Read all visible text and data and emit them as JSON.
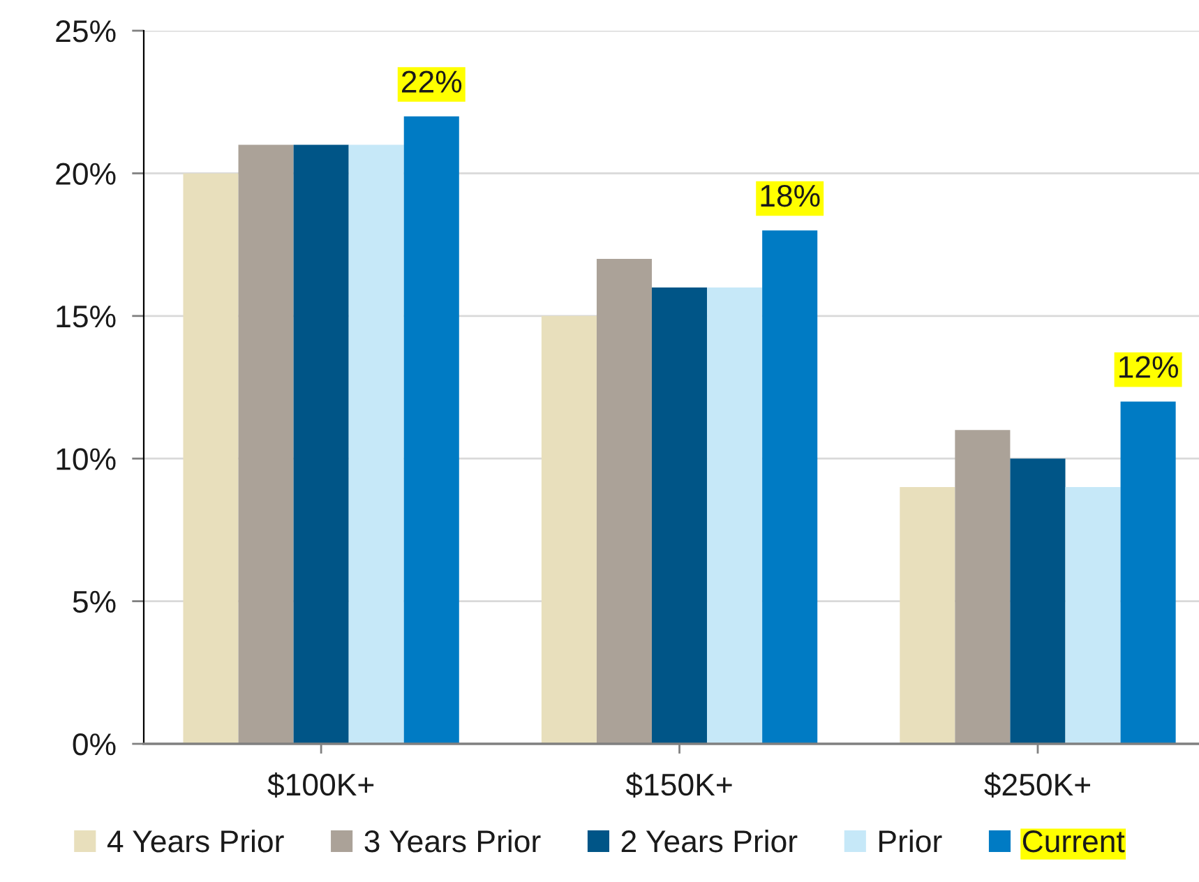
{
  "chart_data": {
    "type": "bar",
    "categories": [
      "$100K+",
      "$150K+",
      "$250K+"
    ],
    "series": [
      {
        "name": "4 Years Prior",
        "color": "#e8dfbc",
        "values": [
          20,
          15,
          9
        ]
      },
      {
        "name": "3 Years Prior",
        "color": "#aba298",
        "values": [
          21,
          17,
          11
        ]
      },
      {
        "name": "2 Years Prior",
        "color": "#005587",
        "values": [
          21,
          16,
          10
        ]
      },
      {
        "name": "Prior",
        "color": "#c6e8f8",
        "values": [
          21,
          16,
          9
        ]
      },
      {
        "name": "Current",
        "color": "#007bc4",
        "values": [
          22,
          18,
          12
        ],
        "value_labels": [
          "22%",
          "18%",
          "12%"
        ]
      }
    ],
    "ylim": [
      0,
      25
    ],
    "yticks": [
      {
        "value": 0,
        "label": "0%"
      },
      {
        "value": 5,
        "label": "5%"
      },
      {
        "value": 10,
        "label": "10%"
      },
      {
        "value": 15,
        "label": "15%"
      },
      {
        "value": 20,
        "label": "20%"
      },
      {
        "value": 25,
        "label": "25%"
      }
    ],
    "grid": "y",
    "legend": "bottom"
  }
}
